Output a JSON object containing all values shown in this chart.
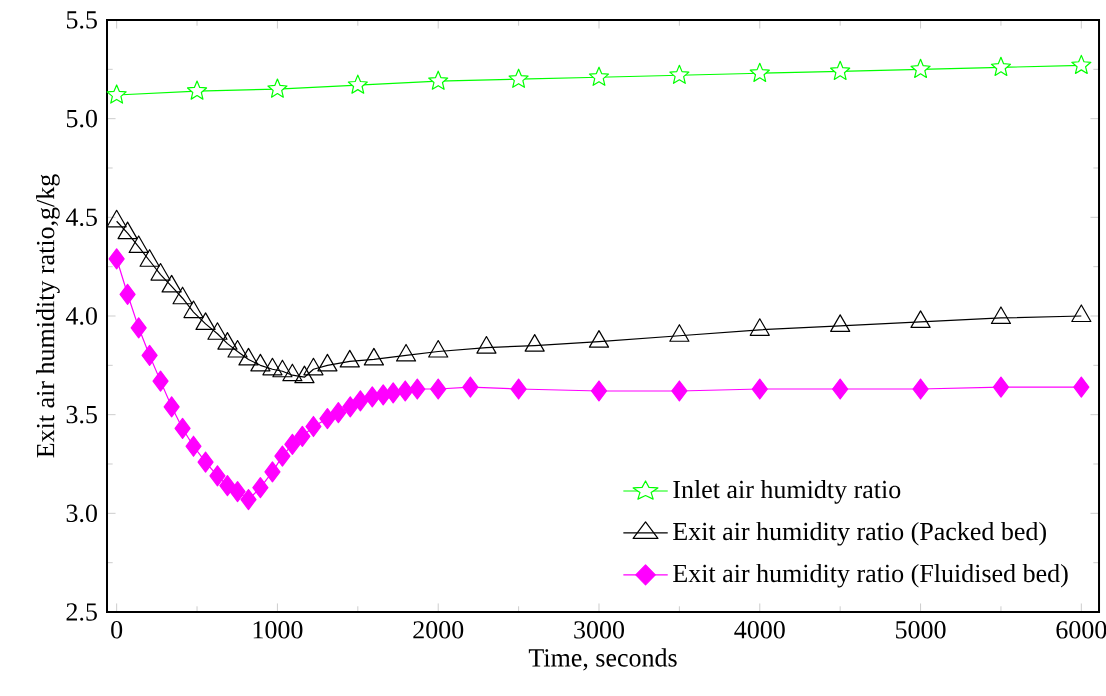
{
  "chart_data": {
    "type": "line",
    "xlabel": "Time, seconds",
    "ylabel": "Exit air humidity ratio,g/kg",
    "xlim": [
      -60,
      6110
    ],
    "ylim": [
      2.5,
      5.5
    ],
    "xticks": [
      0,
      1000,
      2000,
      3000,
      4000,
      5000,
      6000
    ],
    "yticks": [
      2.5,
      {
        "value": 3.0,
        "label": "3.0"
      },
      3.5,
      {
        "value": 4.0,
        "label": "4.0"
      },
      4.5,
      {
        "value": 5.0,
        "label": "5.0"
      },
      5.5
    ],
    "legend": "bottom right",
    "grid": false,
    "series": [
      {
        "name": "Inlet air humidty ratio",
        "color": "#00ff00",
        "marker": "star",
        "x": [
          0,
          500,
          1000,
          1500,
          2000,
          2500,
          3000,
          3500,
          4000,
          4500,
          5000,
          5500,
          6000
        ],
        "values": [
          5.12,
          5.14,
          5.15,
          5.17,
          5.19,
          5.2,
          5.21,
          5.22,
          5.23,
          5.24,
          5.25,
          5.26,
          5.27
        ]
      },
      {
        "name": "Exit air humidity ratio (Packed bed)",
        "color": "#000000",
        "marker": "triangle",
        "x": [
          0,
          68,
          137,
          205,
          273,
          342,
          410,
          478,
          553,
          627,
          689,
          752,
          820,
          894,
          969,
          1031,
          1093,
          1168,
          1224,
          1311,
          1450,
          1600,
          1800,
          2000,
          2300,
          2600,
          3000,
          3500,
          4000,
          4500,
          5000,
          5500,
          6000
        ],
        "values": [
          4.48,
          4.42,
          4.35,
          4.28,
          4.21,
          4.15,
          4.09,
          4.02,
          3.96,
          3.91,
          3.86,
          3.82,
          3.78,
          3.75,
          3.73,
          3.72,
          3.7,
          3.69,
          3.73,
          3.75,
          3.77,
          3.78,
          3.8,
          3.82,
          3.84,
          3.85,
          3.87,
          3.9,
          3.93,
          3.95,
          3.97,
          3.99,
          4.0
        ]
      },
      {
        "name": "Exit air humidity ratio (Fluidised bed)",
        "color": "#ff00ff",
        "marker": "diamond",
        "x": [
          0,
          68,
          137,
          205,
          273,
          342,
          410,
          478,
          553,
          627,
          689,
          752,
          820,
          894,
          969,
          1031,
          1093,
          1155,
          1224,
          1311,
          1379,
          1453,
          1516,
          1590,
          1658,
          1720,
          1795,
          1870,
          2000,
          2200,
          2500,
          3000,
          3500,
          4000,
          4500,
          5000,
          5500,
          6000
        ],
        "values": [
          4.29,
          4.11,
          3.94,
          3.8,
          3.67,
          3.54,
          3.43,
          3.34,
          3.26,
          3.19,
          3.14,
          3.11,
          3.07,
          3.13,
          3.21,
          3.29,
          3.35,
          3.39,
          3.44,
          3.48,
          3.51,
          3.54,
          3.57,
          3.59,
          3.6,
          3.61,
          3.62,
          3.63,
          3.63,
          3.64,
          3.63,
          3.62,
          3.62,
          3.63,
          3.63,
          3.63,
          3.64,
          3.64
        ]
      }
    ]
  }
}
